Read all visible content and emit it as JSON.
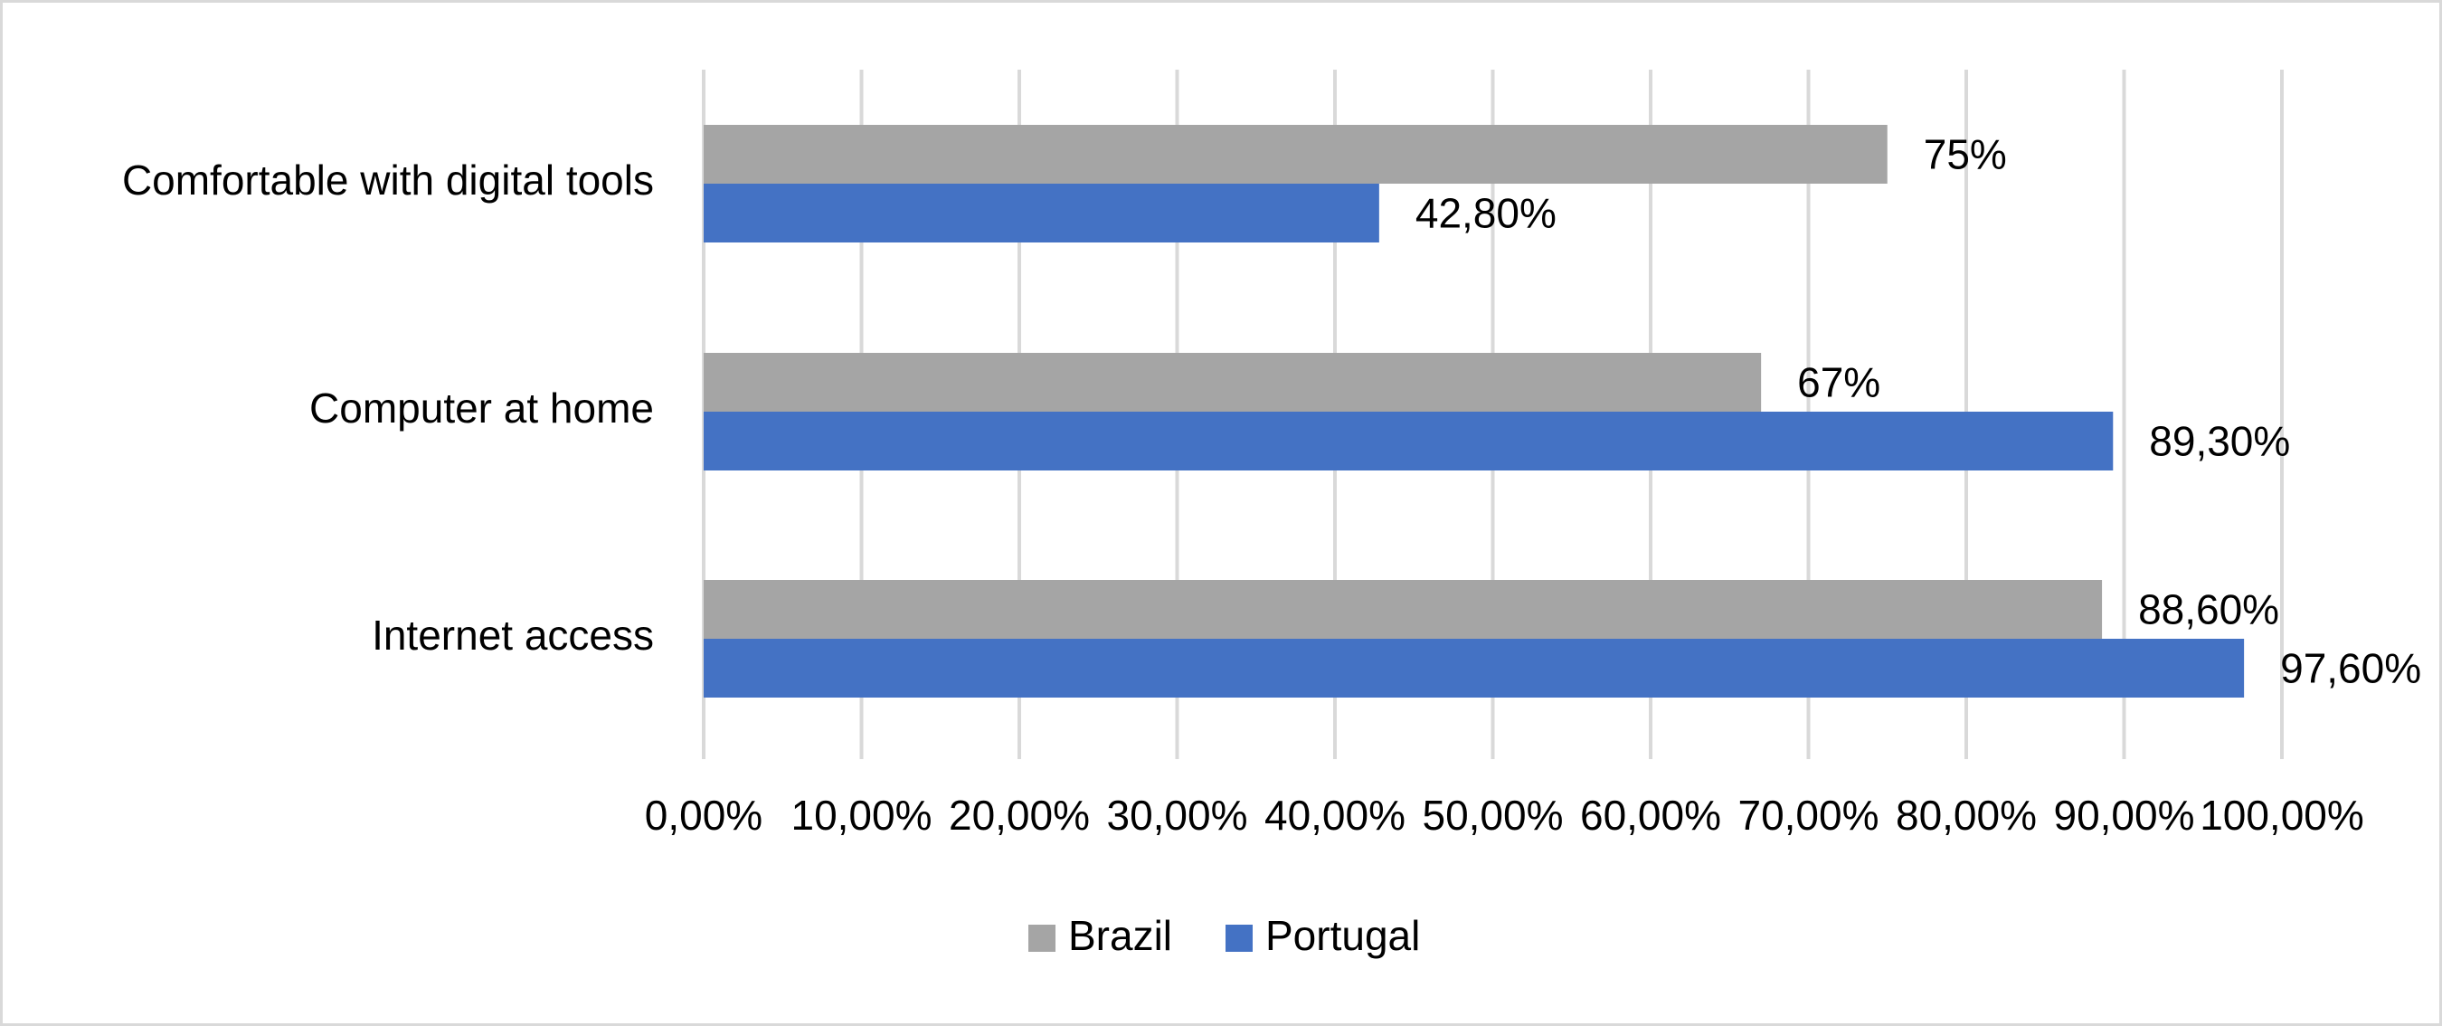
{
  "chart_data": {
    "type": "bar",
    "orientation": "horizontal",
    "categories": [
      "Comfortable with digital tools",
      "Computer at home",
      "Internet access"
    ],
    "series": [
      {
        "name": "Brazil",
        "color": "#a5a5a5",
        "values": [
          75,
          67,
          88.6
        ],
        "value_labels": [
          "75%",
          "67%",
          "88,60%"
        ]
      },
      {
        "name": "Portugal",
        "color": "#4472c4",
        "values": [
          42.8,
          89.3,
          97.6
        ],
        "value_labels": [
          "42,80%",
          "89,30%",
          "97,60%"
        ]
      }
    ],
    "xlim": [
      0,
      100
    ],
    "xticks": [
      {
        "value": 0,
        "label": "0,00%"
      },
      {
        "value": 10,
        "label": "10,00%"
      },
      {
        "value": 20,
        "label": "20,00%"
      },
      {
        "value": 30,
        "label": "30,00%"
      },
      {
        "value": 40,
        "label": "40,00%"
      },
      {
        "value": 50,
        "label": "50,00%"
      },
      {
        "value": 60,
        "label": "60,00%"
      },
      {
        "value": 70,
        "label": "70,00%"
      },
      {
        "value": 80,
        "label": "80,00%"
      },
      {
        "value": 90,
        "label": "90,00%"
      },
      {
        "value": 100,
        "label": "100,00%"
      }
    ],
    "grid": true,
    "legend": "bottom"
  }
}
